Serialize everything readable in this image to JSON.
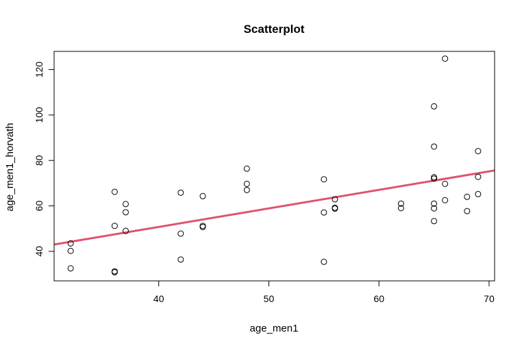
{
  "chart_data": {
    "type": "scatter",
    "title": "Scatterplot",
    "xlabel": "age_men1",
    "ylabel": "age_men1_horvath",
    "xlim": [
      30.5,
      70.5
    ],
    "ylim": [
      27,
      128
    ],
    "xticks": [
      40,
      50,
      60,
      70
    ],
    "yticks": [
      40,
      60,
      80,
      100,
      120
    ],
    "grid": false,
    "legend": "none",
    "points": [
      {
        "x": 32,
        "y": 43.5
      },
      {
        "x": 32,
        "y": 40.2
      },
      {
        "x": 32,
        "y": 32.5
      },
      {
        "x": 36,
        "y": 66.2
      },
      {
        "x": 36,
        "y": 51.2
      },
      {
        "x": 36,
        "y": 31.2
      },
      {
        "x": 36,
        "y": 30.8
      },
      {
        "x": 37,
        "y": 60.8
      },
      {
        "x": 37,
        "y": 57.2
      },
      {
        "x": 37,
        "y": 49.0
      },
      {
        "x": 42,
        "y": 65.8
      },
      {
        "x": 42,
        "y": 47.8
      },
      {
        "x": 42,
        "y": 36.4
      },
      {
        "x": 44,
        "y": 64.3
      },
      {
        "x": 44,
        "y": 51.2
      },
      {
        "x": 44,
        "y": 50.7
      },
      {
        "x": 48,
        "y": 76.4
      },
      {
        "x": 48,
        "y": 69.7
      },
      {
        "x": 48,
        "y": 67.0
      },
      {
        "x": 55,
        "y": 71.7
      },
      {
        "x": 55,
        "y": 57.1
      },
      {
        "x": 55,
        "y": 35.4
      },
      {
        "x": 56,
        "y": 62.9
      },
      {
        "x": 56,
        "y": 59.2
      },
      {
        "x": 56,
        "y": 58.8
      },
      {
        "x": 62,
        "y": 61.0
      },
      {
        "x": 62,
        "y": 59.0
      },
      {
        "x": 65,
        "y": 103.8
      },
      {
        "x": 65,
        "y": 86.1
      },
      {
        "x": 65,
        "y": 72.6
      },
      {
        "x": 65,
        "y": 72.0
      },
      {
        "x": 65,
        "y": 61.0
      },
      {
        "x": 65,
        "y": 58.9
      },
      {
        "x": 65,
        "y": 53.3
      },
      {
        "x": 66,
        "y": 124.8
      },
      {
        "x": 66,
        "y": 69.7
      },
      {
        "x": 66,
        "y": 62.5
      },
      {
        "x": 68,
        "y": 64.0
      },
      {
        "x": 68,
        "y": 57.7
      },
      {
        "x": 69,
        "y": 84.1
      },
      {
        "x": 69,
        "y": 72.8
      },
      {
        "x": 69,
        "y": 65.2
      }
    ],
    "regression_line": {
      "x": [
        30.5,
        70.5
      ],
      "y": [
        43.0,
        75.6
      ],
      "color": "#DF536B"
    },
    "point_color": "#000000"
  }
}
